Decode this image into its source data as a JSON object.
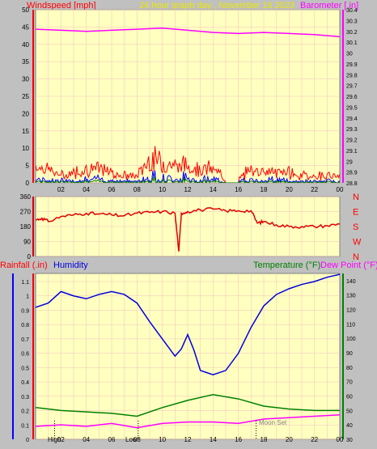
{
  "header": {
    "left_label": "Windspeed [mph]",
    "center_label": "24 hour graph day , November 16 2023",
    "right_label": "Barometer [.in]"
  },
  "colors": {
    "plot_bg": "#ffffc0",
    "frame_bg": "#c0c0c0",
    "grid": "#f0c0c0",
    "wind": "#ff0000",
    "gust_blue": "#0000ff",
    "gust_green": "#008000",
    "barometer": "#ff00ff",
    "wind_dir": "#e00000",
    "humidity": "#0000e0",
    "temperature": "#008000",
    "dew_point": "#ff00ff",
    "rainfall": "#ff0000"
  },
  "x_ticks": [
    "02",
    "04",
    "06",
    "08",
    "10",
    "12",
    "14",
    "16",
    "18",
    "20",
    "22",
    "00"
  ],
  "bottom_x_ticks": [
    "02",
    "04",
    "06",
    "08",
    "10",
    "12",
    "14",
    "16",
    "18",
    "20",
    "22",
    "00"
  ],
  "bottom_markers": {
    "high": "High",
    "low": "Low",
    "moon": "Moon Set"
  },
  "panel_bottom_labels": {
    "rainfall": "Rainfall (.in)",
    "humidity": "Humidity",
    "temperature": "Temperature (°F)",
    "dew_point": "Dew Point (°F)"
  },
  "chart_data": [
    {
      "type": "line",
      "title": "24 hour graph day , November 16 2023",
      "ylabel": "Windspeed [mph]",
      "y2label": "Barometer [.in]",
      "ylim": [
        0,
        50
      ],
      "y_ticks": [
        0,
        5,
        10,
        15,
        20,
        25,
        30,
        35,
        40,
        45,
        50
      ],
      "y2lim": [
        28.8,
        30.4
      ],
      "y2_ticks": [
        "28.8",
        "28.9",
        "29",
        "29.1",
        "29.2",
        "29.3",
        "29.4",
        "29.5",
        "29.6",
        "29.7",
        "29.8",
        "29.9",
        "30",
        "30.1",
        "30.2",
        "30.3",
        "30.4"
      ],
      "series": [
        {
          "axis": "y2",
          "x": [
            0,
            2,
            4,
            6,
            8,
            10,
            12,
            14,
            16,
            18,
            20,
            22,
            24
          ],
          "values": [
            30.22,
            30.21,
            30.2,
            30.21,
            30.22,
            30.23,
            30.21,
            30.19,
            30.18,
            30.19,
            30.18,
            30.17,
            30.15
          ]
        },
        {
          "axis": "y",
          "x": [
            0,
            1,
            2,
            3,
            4,
            5,
            6,
            7,
            8,
            9,
            10,
            11,
            12,
            13,
            14,
            15,
            16,
            17,
            18,
            19,
            20,
            21,
            22,
            23,
            24
          ],
          "values": [
            4,
            3,
            1,
            2,
            3,
            3,
            2,
            1,
            1,
            6,
            5,
            4,
            4,
            3,
            3,
            0,
            0,
            3,
            2,
            2,
            2,
            1,
            1,
            1,
            1
          ]
        }
      ]
    },
    {
      "type": "line",
      "ylim": [
        0,
        360
      ],
      "y_ticks": [
        0,
        90,
        180,
        270,
        360
      ],
      "y2_ticks": [
        "N",
        "W",
        "S",
        "E",
        "N"
      ],
      "series": [
        {
          "x": [
            0,
            0.5,
            1,
            2,
            3,
            4,
            5,
            6,
            7,
            8,
            9,
            10,
            11,
            11.3,
            11.5,
            12,
            13,
            14,
            15,
            16,
            17,
            17.5,
            18,
            19,
            20,
            21,
            22,
            23,
            24
          ],
          "values": [
            220,
            230,
            210,
            240,
            250,
            260,
            255,
            250,
            245,
            260,
            265,
            270,
            260,
            30,
            260,
            270,
            280,
            285,
            275,
            275,
            275,
            200,
            210,
            190,
            180,
            180,
            180,
            185,
            195
          ]
        }
      ]
    },
    {
      "type": "line",
      "y_ticks": [
        "0",
        "0.1",
        "0.2",
        "0.3",
        "0.4",
        "0.5",
        "0.6",
        "0.7",
        "0.8",
        "0.9",
        "1",
        "1.1"
      ],
      "y2_ticks": [
        "30",
        "40",
        "50",
        "60",
        "70",
        "80",
        "90",
        "100",
        "110",
        "120",
        "130",
        "140"
      ],
      "ylim": [
        0,
        1.1
      ],
      "y2lim": [
        30,
        145
      ],
      "series": [
        {
          "axis": "y",
          "x": [
            0,
            1,
            2,
            3,
            4,
            5,
            6,
            7,
            8,
            9,
            10,
            11,
            11.5,
            12,
            12.5,
            13,
            14,
            15,
            16,
            17,
            18,
            19,
            20,
            21,
            22,
            23,
            24
          ],
          "values": [
            0.92,
            0.95,
            1.03,
            1.0,
            0.98,
            1.01,
            1.03,
            1.01,
            0.95,
            0.82,
            0.7,
            0.58,
            0.63,
            0.73,
            0.62,
            0.48,
            0.45,
            0.48,
            0.6,
            0.78,
            0.93,
            1.01,
            1.05,
            1.08,
            1.1,
            1.13,
            1.15
          ]
        },
        {
          "axis": "y2",
          "x": [
            0,
            2,
            4,
            6,
            8,
            10,
            12,
            14,
            16,
            18,
            20,
            22,
            24
          ],
          "values": [
            52,
            50,
            49,
            48,
            46,
            52,
            57,
            61,
            58,
            53,
            51,
            50,
            50
          ]
        },
        {
          "axis": "y2",
          "x": [
            0,
            2,
            4,
            6,
            8,
            10,
            12,
            14,
            16,
            18,
            20,
            22,
            24
          ],
          "values": [
            39,
            40,
            39,
            41,
            38,
            41,
            42,
            42,
            41,
            44,
            45,
            46,
            47
          ]
        }
      ]
    }
  ]
}
